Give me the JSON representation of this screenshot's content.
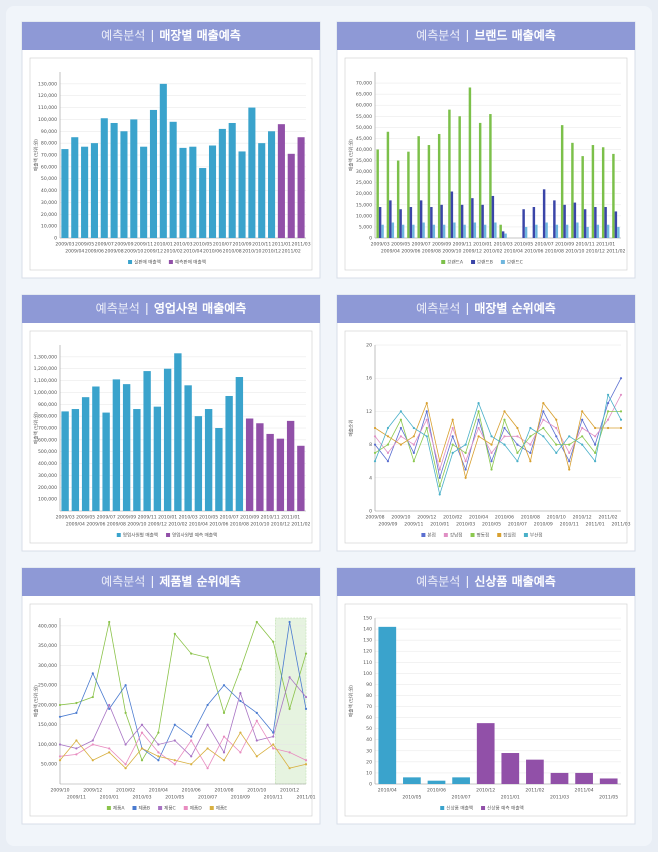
{
  "chart_data": [
    {
      "type": "bar",
      "kicker": "예측분석",
      "title": "매장별 매출예측",
      "ylabel": "매출액 (단위:원)",
      "categories": [
        "2009/03",
        "2009/04",
        "2009/05",
        "2009/06",
        "2009/07",
        "2009/08",
        "2009/09",
        "2009/10",
        "2009/11",
        "2009/12",
        "2010/01",
        "2010/02",
        "2010/03",
        "2010/04",
        "2010/05",
        "2010/06",
        "2010/07",
        "2010/08",
        "2010/09",
        "2010/10",
        "2010/11",
        "2010/12",
        "2011/01",
        "2011/02",
        "2011/03"
      ],
      "series": [
        {
          "name": "실판매 매출액",
          "color": "#3aa3cc",
          "values": [
            75000,
            85000,
            77000,
            80000,
            101000,
            97000,
            90000,
            100000,
            77000,
            108000,
            130000,
            98000,
            76000,
            77000,
            59000,
            78000,
            92000,
            97000,
            73000,
            110000,
            80000,
            90000,
            null,
            null,
            null
          ]
        },
        {
          "name": "예측판매 매출액",
          "color": "#9150a8",
          "values": [
            null,
            null,
            null,
            null,
            null,
            null,
            null,
            null,
            null,
            null,
            null,
            null,
            null,
            null,
            null,
            null,
            null,
            null,
            null,
            null,
            null,
            null,
            96000,
            71000,
            85000
          ]
        }
      ],
      "ylim": [
        0,
        140000
      ],
      "yticks": [
        0,
        {
          "value": 10000,
          "label": "10,000"
        },
        {
          "value": 20000,
          "label": "20,000"
        },
        {
          "value": 30000,
          "label": "30,000"
        },
        {
          "value": 40000,
          "label": "40,000"
        },
        {
          "value": 50000,
          "label": "50,000"
        },
        {
          "value": 60000,
          "label": "60,000"
        },
        {
          "value": 70000,
          "label": "70,000"
        },
        {
          "value": 80000,
          "label": "80,000"
        },
        {
          "value": 90000,
          "label": "90,000"
        },
        {
          "value": 100000,
          "label": "100,000"
        },
        {
          "value": 110000,
          "label": "110,000"
        },
        {
          "value": 120000,
          "label": "120,000"
        },
        {
          "value": 130000,
          "label": "130,000"
        }
      ],
      "grid": true
    },
    {
      "type": "bar",
      "kicker": "예측분석",
      "title": "브랜드 매출예측",
      "ylabel": "매출액 (단위:원)",
      "categories": [
        "2009/03",
        "2009/04",
        "2009/05",
        "2009/06",
        "2009/07",
        "2009/08",
        "2009/09",
        "2009/10",
        "2009/11",
        "2009/12",
        "2010/01",
        "2010/02",
        "2010/03",
        "2010/04",
        "2010/05",
        "2010/06",
        "2010/07",
        "2010/08",
        "2010/09",
        "2010/10",
        "2010/11",
        "2010/12",
        "2011/01",
        "2011/02"
      ],
      "series": [
        {
          "name": "브랜드A",
          "color": "#7cc04a",
          "values": [
            40000,
            48000,
            35000,
            39000,
            46000,
            42000,
            47000,
            58000,
            55000,
            68000,
            52000,
            56000,
            6000,
            0,
            0,
            0,
            0,
            0,
            51000,
            43000,
            37000,
            42000,
            41000,
            38000
          ]
        },
        {
          "name": "브랜드B",
          "color": "#3a45a8",
          "values": [
            14000,
            17000,
            13000,
            14000,
            17000,
            14000,
            15000,
            21000,
            15000,
            18000,
            15000,
            19000,
            3000,
            0,
            13000,
            14000,
            22000,
            17000,
            15000,
            16000,
            13000,
            14000,
            14000,
            12000
          ]
        },
        {
          "name": "브랜드C",
          "color": "#6fb6de",
          "values": [
            6000,
            7000,
            6000,
            6000,
            7000,
            6000,
            6000,
            7000,
            6000,
            7000,
            6000,
            7000,
            2000,
            0,
            5000,
            6000,
            7000,
            6000,
            6000,
            7000,
            5000,
            6000,
            6000,
            5000
          ]
        }
      ],
      "ylim": [
        0,
        75000
      ],
      "yticks": [
        0,
        {
          "value": 5000,
          "label": "5,000"
        },
        {
          "value": 10000,
          "label": "10,000"
        },
        {
          "value": 15000,
          "label": "15,000"
        },
        {
          "value": 20000,
          "label": "20,000"
        },
        {
          "value": 25000,
          "label": "25,000"
        },
        {
          "value": 30000,
          "label": "30,000"
        },
        {
          "value": 35000,
          "label": "35,000"
        },
        {
          "value": 40000,
          "label": "40,000"
        },
        {
          "value": 45000,
          "label": "45,000"
        },
        {
          "value": 50000,
          "label": "50,000"
        },
        {
          "value": 55000,
          "label": "55,000"
        },
        {
          "value": 60000,
          "label": "60,000"
        },
        {
          "value": 65000,
          "label": "65,000"
        },
        {
          "value": 70000,
          "label": "70,000"
        }
      ],
      "grid": true
    },
    {
      "type": "bar",
      "kicker": "예측분석",
      "title": "영업사원 매출예측",
      "ylabel": "매출액 (단위:원)",
      "categories": [
        "2009/03",
        "2009/04",
        "2009/05",
        "2009/06",
        "2009/07",
        "2009/08",
        "2009/09",
        "2009/10",
        "2009/11",
        "2009/12",
        "2010/01",
        "2010/02",
        "2010/03",
        "2010/04",
        "2010/05",
        "2010/06",
        "2010/07",
        "2010/08",
        "2010/09",
        "2010/10",
        "2010/11",
        "2010/12",
        "2011/01",
        "2011/02"
      ],
      "series": [
        {
          "name": "영업사원별 매출액",
          "color": "#3aa3cc",
          "values": [
            840000,
            860000,
            960000,
            1050000,
            830000,
            1110000,
            1070000,
            860000,
            1180000,
            880000,
            1200000,
            1330000,
            1060000,
            800000,
            860000,
            700000,
            970000,
            1130000,
            null,
            null,
            null,
            null,
            null,
            null
          ]
        },
        {
          "name": "영업사원별 예측 매출액",
          "color": "#9150a8",
          "values": [
            null,
            null,
            null,
            null,
            null,
            null,
            null,
            null,
            null,
            null,
            null,
            null,
            null,
            null,
            null,
            null,
            null,
            null,
            780000,
            740000,
            650000,
            610000,
            760000,
            550000
          ]
        }
      ],
      "ylim": [
        0,
        1400000
      ],
      "yticks": [
        {
          "value": 100000,
          "label": "100,000"
        },
        {
          "value": 200000,
          "label": "200,000"
        },
        {
          "value": 300000,
          "label": "300,000"
        },
        {
          "value": 400000,
          "label": "400,000"
        },
        {
          "value": 500000,
          "label": "500,000"
        },
        {
          "value": 600000,
          "label": "600,000"
        },
        {
          "value": 700000,
          "label": "700,000"
        },
        {
          "value": 800000,
          "label": "800,000"
        },
        {
          "value": 900000,
          "label": "900,000"
        },
        {
          "value": 1000000,
          "label": "1,000,000"
        },
        {
          "value": 1100000,
          "label": "1,100,000"
        },
        {
          "value": 1200000,
          "label": "1,200,000"
        },
        {
          "value": 1300000,
          "label": "1,300,000"
        }
      ],
      "grid": true
    },
    {
      "type": "line",
      "kicker": "예측분석",
      "title": "매장별 순위예측",
      "ylabel": "매출순위",
      "categories": [
        "2009/08",
        "2009/09",
        "2009/10",
        "2009/11",
        "2009/12",
        "2010/01",
        "2010/02",
        "2010/03",
        "2010/04",
        "2010/05",
        "2010/06",
        "2010/07",
        "2010/08",
        "2010/09",
        "2010/10",
        "2010/11",
        "2010/12",
        "2011/01",
        "2011/02",
        "2011/03"
      ],
      "series": [
        {
          "name": "본점",
          "color": "#5b6fd0",
          "values": [
            8,
            6,
            10,
            7,
            12,
            4,
            9,
            5,
            11,
            6,
            10,
            8,
            7,
            12,
            9,
            6,
            11,
            8,
            13,
            16
          ]
        },
        {
          "name": "강남점",
          "color": "#e08fc4",
          "values": [
            9,
            7,
            9,
            8,
            11,
            5,
            10,
            6,
            10,
            7,
            9,
            9,
            8,
            11,
            10,
            7,
            10,
            9,
            11,
            14
          ]
        },
        {
          "name": "명동점",
          "color": "#8cc850",
          "values": [
            7,
            8,
            11,
            6,
            10,
            3,
            8,
            7,
            12,
            5,
            11,
            7,
            9,
            10,
            8,
            8,
            9,
            7,
            12,
            12
          ]
        },
        {
          "name": "잠실점",
          "color": "#d8a030",
          "values": [
            10,
            9,
            8,
            9,
            13,
            6,
            11,
            4,
            9,
            8,
            12,
            10,
            6,
            13,
            11,
            5,
            12,
            10,
            10,
            10
          ]
        },
        {
          "name": "부산점",
          "color": "#4ab0c8",
          "values": [
            6,
            10,
            12,
            10,
            9,
            2,
            7,
            8,
            13,
            9,
            8,
            6,
            10,
            9,
            7,
            9,
            8,
            6,
            14,
            11
          ]
        }
      ],
      "ylim": [
        0,
        20
      ],
      "yticks": [
        0,
        4,
        8,
        12,
        16,
        20
      ],
      "grid": true
    },
    {
      "type": "line",
      "kicker": "예측분석",
      "title": "제품별 순위예측",
      "ylabel": "매출액 (단위:원)",
      "categories": [
        "2009/10",
        "2009/11",
        "2009/12",
        "2010/01",
        "2010/02",
        "2010/03",
        "2010/04",
        "2010/05",
        "2010/06",
        "2010/07",
        "2010/08",
        "2010/09",
        "2010/10",
        "2010/11",
        "2010/12",
        "2011/01"
      ],
      "forecast_band": [
        "2010/12",
        "2011/01"
      ],
      "series": [
        {
          "name": "제품A",
          "color": "#8bc34a",
          "values": [
            200000,
            205000,
            220000,
            410000,
            180000,
            60000,
            130000,
            380000,
            330000,
            320000,
            180000,
            290000,
            410000,
            360000,
            190000,
            330000
          ]
        },
        {
          "name": "제품B",
          "color": "#4a7bd0",
          "values": [
            170000,
            180000,
            280000,
            190000,
            250000,
            90000,
            60000,
            150000,
            120000,
            200000,
            250000,
            210000,
            180000,
            130000,
            410000,
            190000
          ]
        },
        {
          "name": "제품C",
          "color": "#a874c4",
          "values": [
            100000,
            90000,
            110000,
            200000,
            100000,
            150000,
            100000,
            110000,
            70000,
            150000,
            80000,
            230000,
            110000,
            120000,
            270000,
            220000
          ]
        },
        {
          "name": "제품D",
          "color": "#e88cc0",
          "values": [
            70000,
            75000,
            100000,
            90000,
            50000,
            130000,
            80000,
            50000,
            110000,
            40000,
            120000,
            80000,
            160000,
            90000,
            80000,
            60000
          ]
        },
        {
          "name": "제품E",
          "color": "#d8b040",
          "values": [
            60000,
            110000,
            60000,
            80000,
            40000,
            90000,
            70000,
            60000,
            50000,
            90000,
            60000,
            130000,
            70000,
            100000,
            40000,
            50000
          ]
        }
      ],
      "ylim": [
        0,
        420000
      ],
      "yticks": [
        {
          "value": 50000,
          "label": "50,000"
        },
        {
          "value": 100000,
          "label": "100,000"
        },
        {
          "value": 150000,
          "label": "150,000"
        },
        {
          "value": 200000,
          "label": "200,000"
        },
        {
          "value": 250000,
          "label": "250,000"
        },
        {
          "value": 300000,
          "label": "300,000"
        },
        {
          "value": 350000,
          "label": "350,000"
        },
        {
          "value": 400000,
          "label": "400,000"
        }
      ],
      "grid": true
    },
    {
      "type": "bar",
      "kicker": "예측분석",
      "title": "신상품 매출예측",
      "ylabel": "매출액 (단위:원)",
      "categories": [
        "2010/04",
        "2010/05",
        "2010/06",
        "2010/07",
        "2010/12",
        "2011/01",
        "2011/02",
        "2011/03",
        "2011/04",
        "2011/05"
      ],
      "series": [
        {
          "name": "신상품 매출액",
          "color": "#3aa3cc",
          "values": [
            142,
            6,
            3,
            6,
            null,
            null,
            null,
            null,
            null,
            null
          ]
        },
        {
          "name": "신상품 예측 매출액",
          "color": "#9150a8",
          "values": [
            null,
            null,
            null,
            null,
            55,
            28,
            22,
            10,
            10,
            5
          ]
        }
      ],
      "ylim": [
        0,
        150
      ],
      "yticks": [
        0,
        10,
        20,
        30,
        40,
        50,
        60,
        70,
        80,
        90,
        100,
        110,
        120,
        130,
        140,
        150
      ],
      "grid": true
    }
  ]
}
